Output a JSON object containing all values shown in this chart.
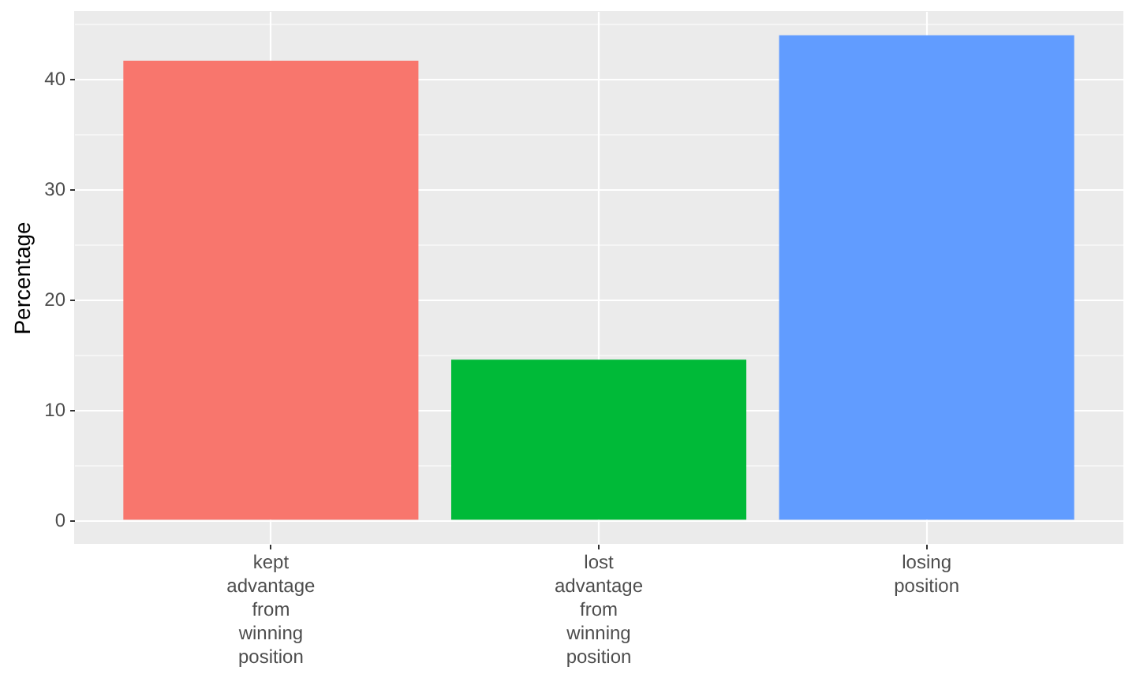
{
  "chart_data": {
    "type": "bar",
    "ylabel": "Percentage",
    "categories": [
      "kept advantage from winning position",
      "lost advantage from winning position",
      "losing position"
    ],
    "values": [
      41.6,
      14.5,
      43.9
    ],
    "colors": [
      "#f8766d",
      "#00ba38",
      "#619cff"
    ],
    "ylim": [
      -2.2,
      46.1
    ],
    "yticks": [
      0,
      10,
      20,
      30,
      40
    ],
    "grid": true
  }
}
